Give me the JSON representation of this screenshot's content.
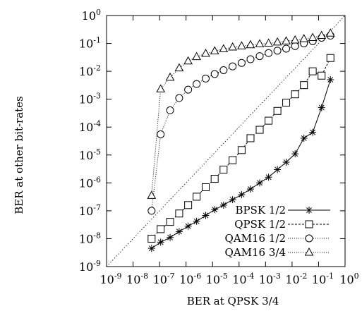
{
  "chart_data": {
    "type": "line",
    "xlabel": "BER at QPSK 3/4",
    "ylabel": "BER at other bit-rates",
    "xscale": "log",
    "yscale": "log",
    "xlim": [
      1e-09,
      1
    ],
    "ylim": [
      1e-09,
      1
    ],
    "x_ticks": [
      {
        "base": "10",
        "exp": "-9"
      },
      {
        "base": "10",
        "exp": "-8"
      },
      {
        "base": "10",
        "exp": "-7"
      },
      {
        "base": "10",
        "exp": "-6"
      },
      {
        "base": "10",
        "exp": "-5"
      },
      {
        "base": "10",
        "exp": "-4"
      },
      {
        "base": "10",
        "exp": "-3"
      },
      {
        "base": "10",
        "exp": "-2"
      },
      {
        "base": "10",
        "exp": "-1"
      },
      {
        "base": "10",
        "exp": "0"
      }
    ],
    "y_ticks": [
      {
        "base": "10",
        "exp": "-9"
      },
      {
        "base": "10",
        "exp": "-8"
      },
      {
        "base": "10",
        "exp": "-7"
      },
      {
        "base": "10",
        "exp": "-6"
      },
      {
        "base": "10",
        "exp": "-5"
      },
      {
        "base": "10",
        "exp": "-4"
      },
      {
        "base": "10",
        "exp": "-3"
      },
      {
        "base": "10",
        "exp": "-2"
      },
      {
        "base": "10",
        "exp": "-1"
      },
      {
        "base": "10",
        "exp": "0"
      }
    ],
    "grid": false,
    "legend_position": "bottom-right",
    "reference_line": "y = x",
    "series": [
      {
        "name": "BPSK 1/2",
        "marker": "star",
        "line_style": "solid",
        "x": [
          5e-08,
          1.1e-07,
          2.5e-07,
          5.5e-07,
          1.2e-06,
          2.5e-06,
          5.5e-06,
          1.2e-05,
          2.6e-05,
          5.7e-05,
          0.000125,
          0.00027,
          0.0006,
          0.0013,
          0.0028,
          0.006,
          0.013,
          0.028,
          0.06,
          0.13,
          0.28
        ],
        "y": [
          4.5e-09,
          7.5e-09,
          1.1e-08,
          1.8e-08,
          2.8e-08,
          4.2e-08,
          6.8e-08,
          1.1e-07,
          1.6e-07,
          2.5e-07,
          3.8e-07,
          6e-07,
          1e-06,
          1.6e-06,
          3e-06,
          5.5e-06,
          1.1e-05,
          4e-05,
          6.5e-05,
          0.0005,
          0.005
        ]
      },
      {
        "name": "QPSK 1/2",
        "marker": "square",
        "line_style": "dashed",
        "x": [
          5e-08,
          1.1e-07,
          2.5e-07,
          5.5e-07,
          1.2e-06,
          2.5e-06,
          5.5e-06,
          1.2e-05,
          2.6e-05,
          5.7e-05,
          0.000125,
          0.00027,
          0.0006,
          0.0013,
          0.0028,
          0.006,
          0.013,
          0.028,
          0.06,
          0.13,
          0.28
        ],
        "y": [
          1e-08,
          2.2e-08,
          4e-08,
          8e-08,
          1.6e-07,
          3.2e-07,
          7e-07,
          1.4e-06,
          3e-06,
          6.5e-06,
          1.5e-05,
          4e-05,
          8e-05,
          0.00017,
          0.00038,
          0.00075,
          0.0015,
          0.0032,
          0.01,
          0.007,
          0.03
        ]
      },
      {
        "name": "QAM16 1/2",
        "marker": "circle",
        "line_style": "dotted",
        "x": [
          5e-08,
          1.1e-07,
          2.5e-07,
          5.5e-07,
          1.2e-06,
          2.5e-06,
          5.5e-06,
          1.2e-05,
          2.6e-05,
          5.7e-05,
          0.000125,
          0.00027,
          0.0006,
          0.0013,
          0.0028,
          0.006,
          0.013,
          0.028,
          0.06,
          0.13,
          0.28
        ],
        "y": [
          1e-07,
          5.5e-05,
          0.0004,
          0.0011,
          0.0022,
          0.0035,
          0.0055,
          0.008,
          0.011,
          0.015,
          0.02,
          0.027,
          0.035,
          0.045,
          0.055,
          0.065,
          0.08,
          0.1,
          0.12,
          0.16,
          0.19
        ]
      },
      {
        "name": "QAM16 3/4",
        "marker": "triangle",
        "line_style": "dotted",
        "x": [
          5e-08,
          1.1e-07,
          2.5e-07,
          5.5e-07,
          1.2e-06,
          2.5e-06,
          5.5e-06,
          1.2e-05,
          2.6e-05,
          5.7e-05,
          0.000125,
          0.00027,
          0.0006,
          0.0013,
          0.0028,
          0.006,
          0.013,
          0.028,
          0.06,
          0.13,
          0.28
        ],
        "y": [
          3.5e-07,
          0.0023,
          0.006,
          0.013,
          0.023,
          0.033,
          0.043,
          0.053,
          0.063,
          0.073,
          0.08,
          0.088,
          0.095,
          0.1,
          0.11,
          0.12,
          0.13,
          0.145,
          0.16,
          0.19,
          0.23
        ]
      }
    ]
  }
}
